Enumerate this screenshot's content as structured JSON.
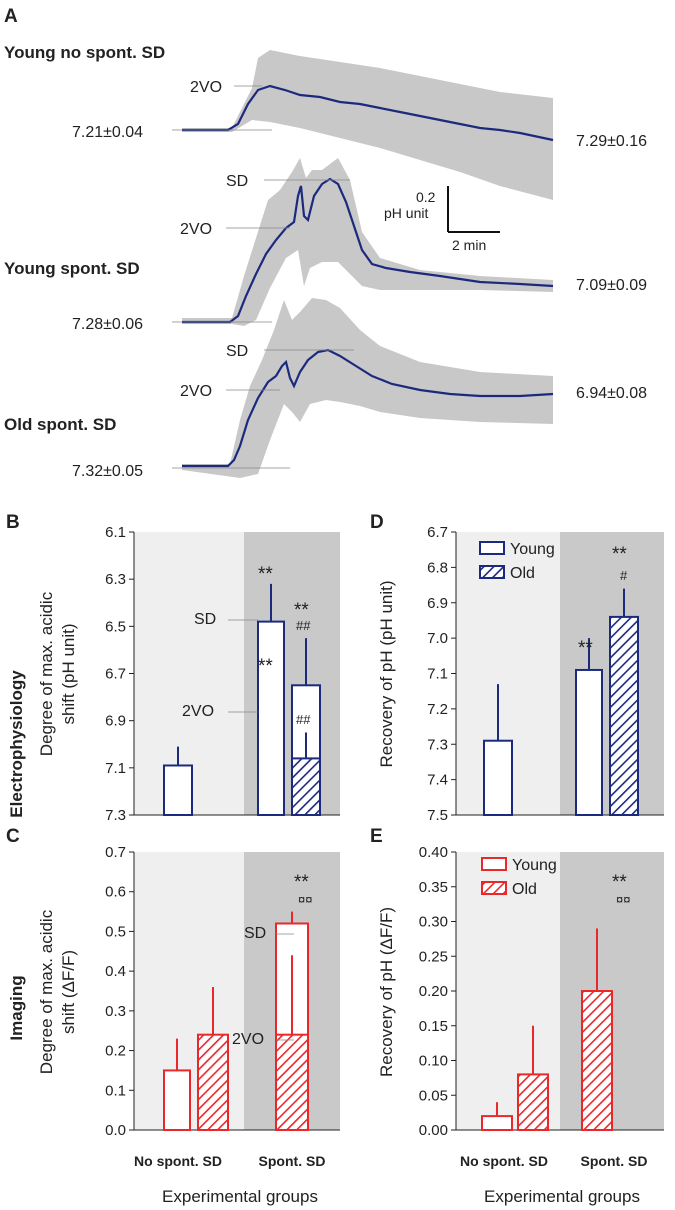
{
  "figure": {
    "colors": {
      "blue": "#1c2a7e",
      "red": "#e8282b",
      "band": "#c8c8c8",
      "light_panel": "#efefef",
      "dark_panel": "#c9c9c9"
    },
    "row_labels": {
      "electro": "Electrophysiology",
      "imaging": "Imaging"
    },
    "xlabel": "Experimental groups",
    "categories": [
      "No spont. SD",
      "Spont. SD"
    ],
    "legend": {
      "young": "Young",
      "old": "Old"
    }
  },
  "chart_data": [
    {
      "panel": "A",
      "type": "line",
      "scale_bar": {
        "value": "0.2",
        "unit": "pH unit",
        "time": "2 min"
      },
      "traces": [
        {
          "title": "Young no spont. SD",
          "marker_2vo": "2VO",
          "start": "7.21±0.04",
          "end": "7.29±0.16",
          "baseline_pH": 7.21,
          "end_pH": 7.29,
          "peak_shift": 0.2,
          "sd": false
        },
        {
          "title": "Young spont. SD",
          "marker_2vo": "2VO",
          "marker_sd": "SD",
          "start": "7.28±0.06",
          "end": "7.09±0.09",
          "baseline_pH": 7.28,
          "end_pH": 7.09,
          "peak_shift": 0.62,
          "sd": true
        },
        {
          "title": "Old spont. SD",
          "marker_2vo": "2VO",
          "marker_sd": "SD",
          "start": "7.32±0.05",
          "end": "6.94±0.08",
          "baseline_pH": 7.32,
          "end_pH": 6.94,
          "peak_shift": 0.5,
          "sd": true
        }
      ]
    },
    {
      "panel": "B",
      "type": "bar",
      "ylabel_line1": "Degree of max. acidic",
      "ylabel_line2": "shift (pH unit)",
      "ylim": [
        7.3,
        6.1
      ],
      "yticks": [
        "6.1",
        "6.3",
        "6.5",
        "6.7",
        "6.9",
        "7.1",
        "7.3"
      ],
      "inverted": true,
      "bars": [
        {
          "group": "No spont. SD",
          "age": "Young",
          "value": 7.09,
          "err": 0.08
        },
        {
          "group": "Spont. SD",
          "age": "Young",
          "value": 6.48,
          "err": 0.16,
          "phase": "SD",
          "stars": "**"
        },
        {
          "group": "Spont. SD",
          "age": "Young",
          "value": 6.86,
          "err": 0.14,
          "phase": "2VO",
          "stars": "**"
        },
        {
          "group": "Spont. SD",
          "age": "Old",
          "value": 6.75,
          "err": 0.2,
          "phase": "SD",
          "stars": "**",
          "hash": "##"
        },
        {
          "group": "Spont. SD",
          "age": "Old",
          "value": 7.06,
          "err": 0.11,
          "phase": "2VO",
          "hash": "##"
        }
      ],
      "labels": {
        "sd": "SD",
        "vo": "2VO"
      }
    },
    {
      "panel": "C",
      "type": "bar",
      "ylabel_line1": "Degree of max. acidic",
      "ylabel_line2": "shift (ΔF/F)",
      "ylim": [
        0.0,
        0.7
      ],
      "yticks": [
        "0.0",
        "0.1",
        "0.2",
        "0.3",
        "0.4",
        "0.5",
        "0.6",
        "0.7"
      ],
      "bars": [
        {
          "group": "No spont. SD",
          "age": "Young",
          "value": 0.15,
          "err": 0.08
        },
        {
          "group": "No spont. SD",
          "age": "Old",
          "value": 0.24,
          "err": 0.12
        },
        {
          "group": "Spont. SD",
          "age": "Old",
          "value": 0.52,
          "err": 0.03,
          "phase": "SD",
          "stars": "**",
          "hash": "¤¤"
        },
        {
          "group": "Spont. SD",
          "age": "Old",
          "value": 0.24,
          "err": 0.2,
          "phase": "2VO"
        }
      ],
      "labels": {
        "sd": "SD",
        "vo": "2VO"
      }
    },
    {
      "panel": "D",
      "type": "bar",
      "ylabel_line1": "Recovery of pH (pH unit)",
      "ylim": [
        7.5,
        6.7
      ],
      "yticks": [
        "6.7",
        "6.8",
        "6.9",
        "7.0",
        "7.1",
        "7.2",
        "7.3",
        "7.4",
        "7.5"
      ],
      "inverted": true,
      "bars": [
        {
          "group": "No spont. SD",
          "age": "Young",
          "value": 7.29,
          "err": 0.16
        },
        {
          "group": "Spont. SD",
          "age": "Young",
          "value": 7.09,
          "err": 0.09,
          "stars": "**"
        },
        {
          "group": "Spont. SD",
          "age": "Old",
          "value": 6.94,
          "err": 0.08,
          "stars": "**",
          "hash": "#"
        }
      ]
    },
    {
      "panel": "E",
      "type": "bar",
      "ylabel_line1": "Recovery of pH (ΔF/F)",
      "ylim": [
        0.0,
        0.4
      ],
      "yticks": [
        "0.00",
        "0.05",
        "0.10",
        "0.15",
        "0.20",
        "0.25",
        "0.30",
        "0.35",
        "0.40"
      ],
      "bars": [
        {
          "group": "No spont. SD",
          "age": "Young",
          "value": 0.02,
          "err": 0.02
        },
        {
          "group": "No spont. SD",
          "age": "Old",
          "value": 0.08,
          "err": 0.07
        },
        {
          "group": "Spont. SD",
          "age": "Old",
          "value": 0.2,
          "err": 0.09,
          "stars": "**",
          "hash": "¤¤"
        }
      ]
    }
  ]
}
